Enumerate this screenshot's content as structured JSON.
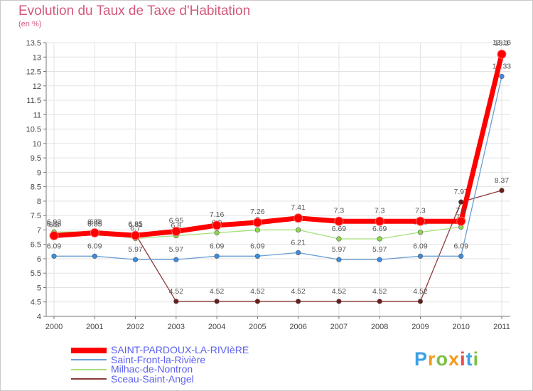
{
  "chart_data": {
    "type": "line",
    "title": "Evolution du Taux de Taxe d'Habitation",
    "subtitle": "(en %)",
    "xlabel": "",
    "ylabel": "",
    "categories": [
      "2000",
      "2001",
      "2002",
      "2003",
      "2004",
      "2005",
      "2006",
      "2007",
      "2008",
      "2009",
      "2010",
      "2011"
    ],
    "ylim": [
      4,
      13.5
    ],
    "yticks": [
      "4",
      "4.5",
      "5",
      "5.5",
      "6",
      "6.5",
      "7",
      "7.5",
      "8",
      "8.5",
      "9",
      "9.5",
      "10",
      "10.5",
      "11",
      "11.5",
      "12",
      "12.5",
      "13",
      "13.5"
    ],
    "grid": true,
    "legend_position": "bottom-left",
    "series": [
      {
        "name": "SAINT-PARDOUX-LA-RIVIèRE",
        "color": "#ff0000",
        "marker": "#ff0000",
        "values": [
          6.8,
          6.9,
          6.81,
          6.95,
          7.16,
          7.26,
          7.41,
          7.3,
          7.3,
          7.3,
          7.3,
          13.1
        ],
        "labels": [
          "6.8",
          "6.9",
          "6.81",
          "6.95",
          "7.16",
          "7.26",
          "7.41",
          "7.3",
          "7.3",
          "7.3",
          "7.3",
          "13.1"
        ]
      },
      {
        "name": "Saint-Front-la-Rivière",
        "color": "#6a9ed4",
        "marker": "#3b8de0",
        "values": [
          6.09,
          6.09,
          5.97,
          5.97,
          6.09,
          6.09,
          6.21,
          5.97,
          5.97,
          6.09,
          6.09,
          12.33
        ],
        "labels": [
          "6.09",
          "6.09",
          "5.97",
          "5.97",
          "6.09",
          "6.09",
          "6.21",
          "5.97",
          "5.97",
          "6.09",
          "6.09",
          "12.33"
        ]
      },
      {
        "name": "Milhac-de-Nontron",
        "color": "#a6e07a",
        "marker": "#8cd94a",
        "values": [
          6.93,
          6.93,
          6.7,
          6.8,
          6.9,
          7.0,
          7.0,
          6.69,
          6.69,
          6.92,
          7.1,
          13.16
        ],
        "labels": [
          "6.93",
          "6.93",
          "6.7",
          "6.8",
          "6.9",
          "7",
          "7",
          "6.69",
          "6.69",
          "6.92",
          "7.1",
          "13.16"
        ]
      },
      {
        "name": "Sceau-Saint-Angel",
        "color": "#8b3a3a",
        "marker": "#6e1b1b",
        "values": [
          6.85,
          6.85,
          6.85,
          4.52,
          4.52,
          4.52,
          4.52,
          4.52,
          4.52,
          4.52,
          7.97,
          8.37
        ],
        "labels": [
          "6.85",
          "6.85",
          "6.85",
          "4.52",
          "4.52",
          "4.52",
          "4.52",
          "4.52",
          "4.52",
          "4.52",
          "7.97",
          "8.37"
        ]
      }
    ]
  },
  "logo": {
    "text": "Proxiti"
  }
}
